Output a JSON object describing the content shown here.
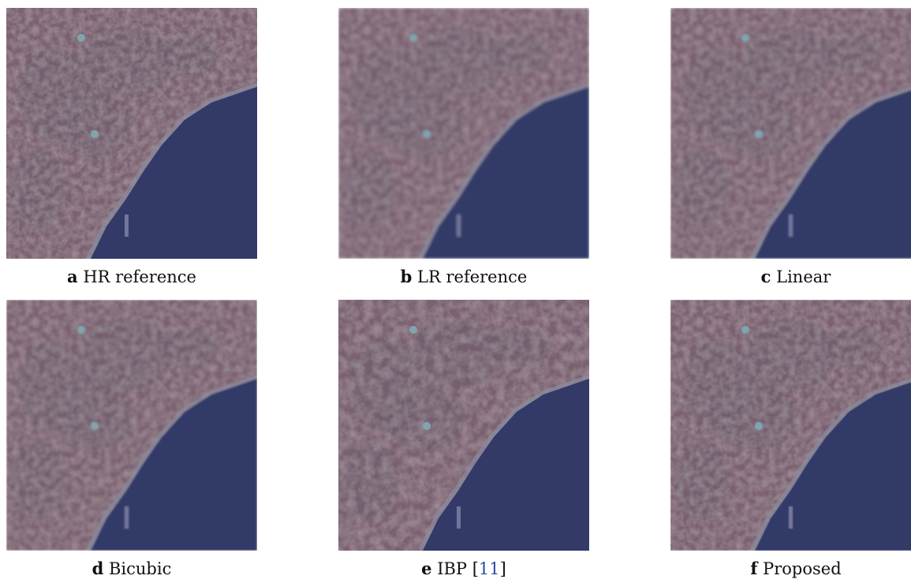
{
  "panels": [
    {
      "letter": "a",
      "caption": "HR reference"
    },
    {
      "letter": "b",
      "caption": "LR reference"
    },
    {
      "letter": "c",
      "caption": "Linear"
    },
    {
      "letter": "d",
      "caption": "Bicubic"
    },
    {
      "letter": "e",
      "caption": "IBP [",
      "citation": "11",
      "caption_end": "]"
    },
    {
      "letter": "f",
      "caption": "Proposed"
    }
  ]
}
